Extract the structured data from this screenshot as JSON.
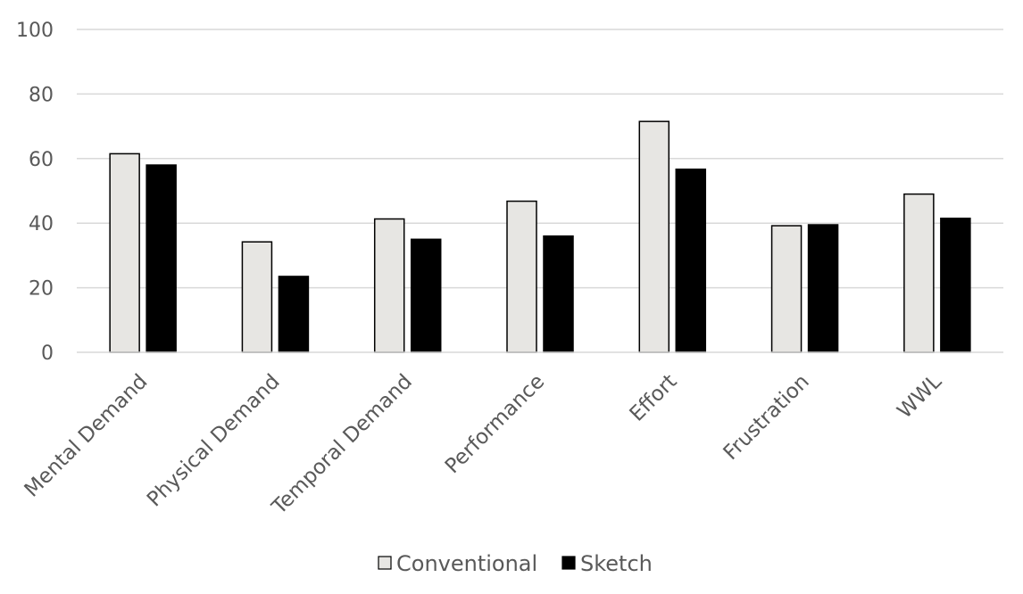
{
  "chart_data": {
    "type": "bar",
    "categories": [
      "Mental Demand",
      "Physical Demand",
      "Temporal Demand",
      "Performance",
      "Effort",
      "Frustration",
      "WWL"
    ],
    "series": [
      {
        "name": "Conventional",
        "color": "#e7e6e3",
        "values": [
          61.5,
          34.2,
          41.3,
          46.8,
          71.5,
          39.2,
          49.0
        ]
      },
      {
        "name": "Sketch",
        "color": "#000000",
        "values": [
          58.0,
          23.5,
          35.0,
          36.0,
          56.7,
          39.5,
          41.5
        ]
      }
    ],
    "yticks": [
      "0",
      "20",
      "40",
      "60",
      "80",
      "100"
    ],
    "ylim": [
      0,
      100
    ],
    "grid": true,
    "legend": "bottom-center",
    "title": "",
    "xlabel": "",
    "ylabel": ""
  }
}
